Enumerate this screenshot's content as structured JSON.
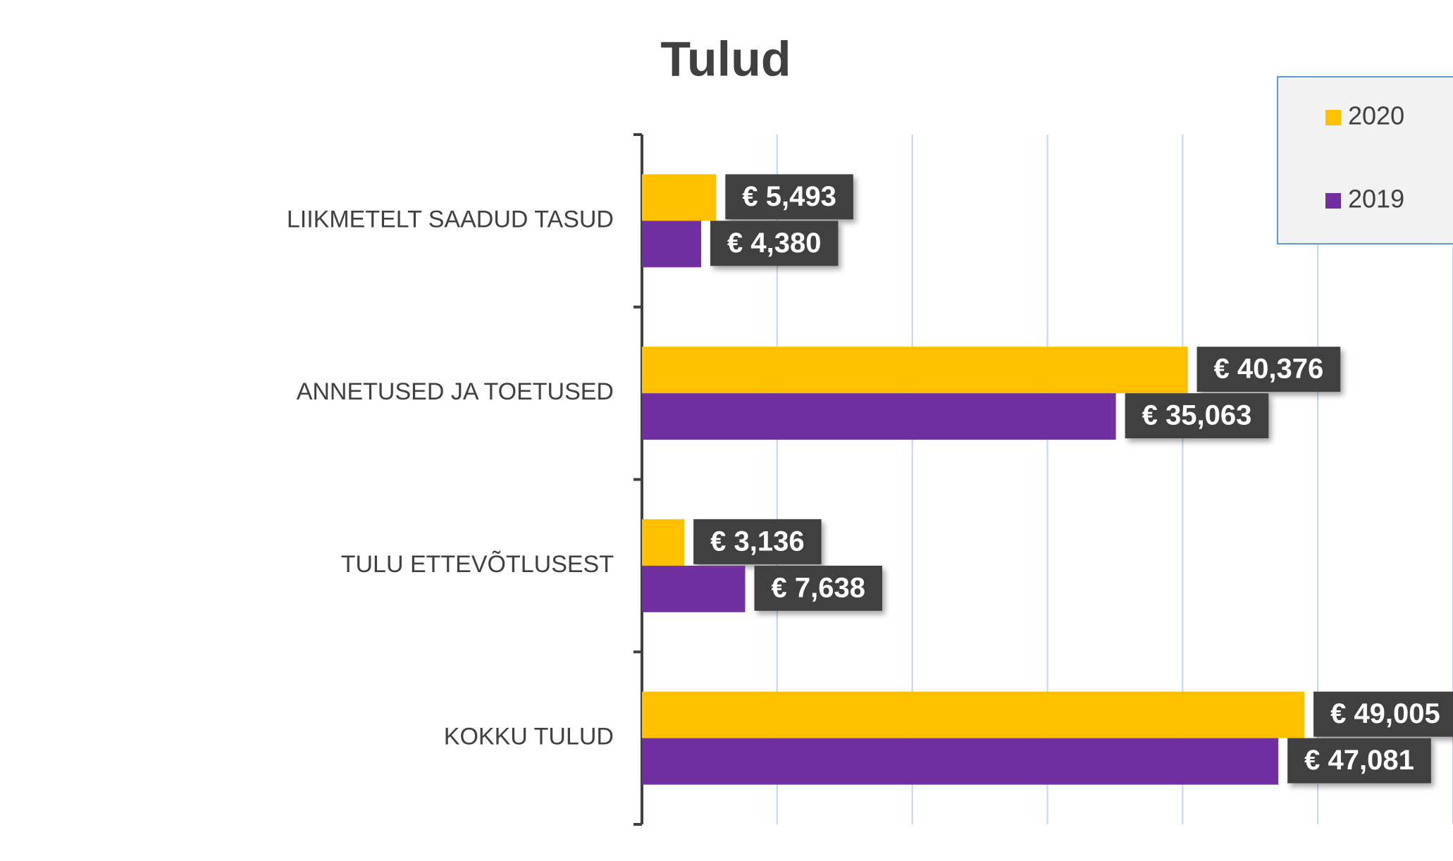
{
  "chart_data": {
    "type": "bar",
    "orientation": "horizontal",
    "title": "Tulud",
    "categories": [
      "LIIKMETELT SAADUD TASUD",
      "ANNETUSED JA TOETUSED",
      "TULU ETTEVÕTLUSEST",
      "KOKKU TULUD"
    ],
    "series": [
      {
        "name": "2020",
        "color": "#FFC000",
        "values": [
          5493,
          40376,
          3136,
          49005
        ],
        "value_labels": [
          "€ 5,493",
          "€ 40,376",
          "€ 3,136",
          "€ 49,005"
        ]
      },
      {
        "name": "2019",
        "color": "#7030A0",
        "values": [
          4380,
          35063,
          7638,
          47081
        ],
        "value_labels": [
          "€ 4,380",
          "€ 35,063",
          "€ 7,638",
          "€ 47,081"
        ]
      }
    ],
    "xlim": [
      0,
      60000
    ],
    "xticks": [
      0,
      10000,
      20000,
      30000,
      40000,
      50000,
      60000
    ],
    "grid": true,
    "legend": "top right"
  }
}
